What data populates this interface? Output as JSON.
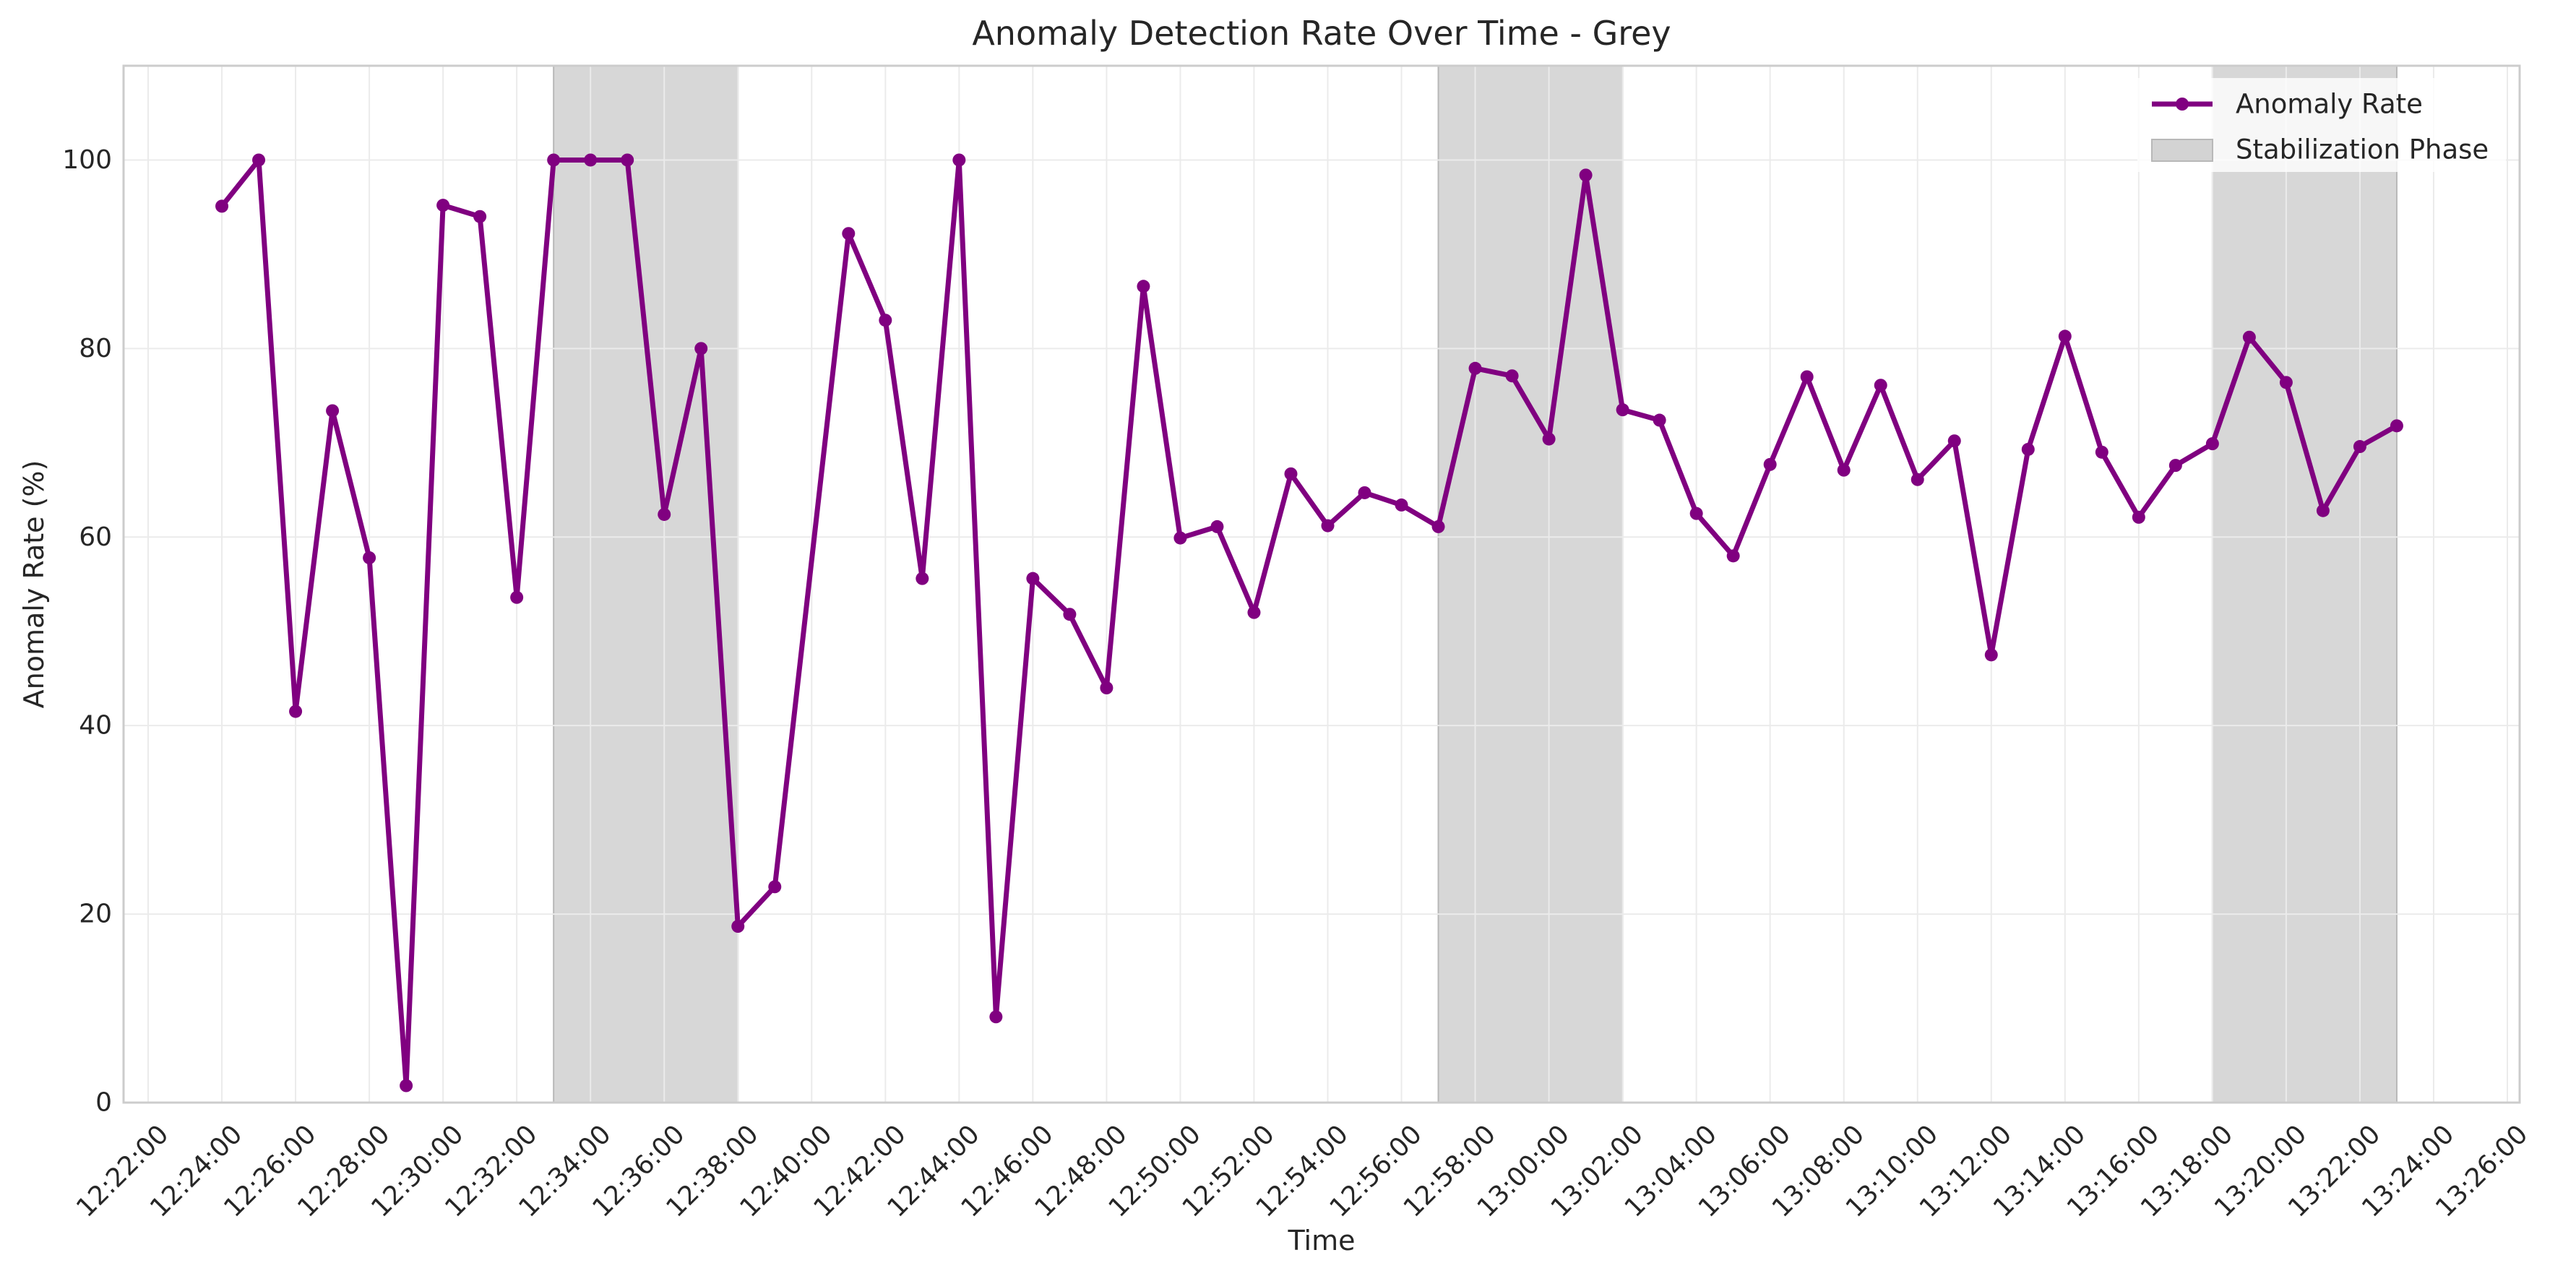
{
  "chart_data": {
    "type": "line",
    "title": "Anomaly Detection Rate Over Time - Grey",
    "xlabel": "Time",
    "ylabel": "Anomaly Rate (%)",
    "ylim": [
      0,
      110
    ],
    "y_ticks": [
      "0",
      "20",
      "40",
      "60",
      "80",
      "100"
    ],
    "x_range": [
      "12:21:20",
      "13:26:20"
    ],
    "x_ticks": [
      "12:22:00",
      "12:24:00",
      "12:26:00",
      "12:28:00",
      "12:30:00",
      "12:32:00",
      "12:34:00",
      "12:36:00",
      "12:38:00",
      "12:40:00",
      "12:42:00",
      "12:44:00",
      "12:46:00",
      "12:48:00",
      "12:50:00",
      "12:52:00",
      "12:54:00",
      "12:56:00",
      "12:58:00",
      "13:00:00",
      "13:02:00",
      "13:04:00",
      "13:06:00",
      "13:08:00",
      "13:10:00",
      "13:12:00",
      "13:14:00",
      "13:16:00",
      "13:18:00",
      "13:20:00",
      "13:22:00",
      "13:24:00",
      "13:26:00"
    ],
    "grid": true,
    "legend_position": "upper right",
    "series": [
      {
        "name": "Anomaly Rate",
        "color": "#800080",
        "marker": "circle",
        "x": [
          "12:24:00",
          "12:25:00",
          "12:26:00",
          "12:27:00",
          "12:28:00",
          "12:29:00",
          "12:30:00",
          "12:31:00",
          "12:32:00",
          "12:33:00",
          "12:34:00",
          "12:35:00",
          "12:36:00",
          "12:37:00",
          "12:38:00",
          "12:39:00",
          "12:41:00",
          "12:42:00",
          "12:43:00",
          "12:44:00",
          "12:45:00",
          "12:46:00",
          "12:47:00",
          "12:48:00",
          "12:49:00",
          "12:50:00",
          "12:51:00",
          "12:52:00",
          "12:53:00",
          "12:54:00",
          "12:55:00",
          "12:56:00",
          "12:57:00",
          "12:58:00",
          "12:59:00",
          "13:00:00",
          "13:01:00",
          "13:02:00",
          "13:03:00",
          "13:04:00",
          "13:05:00",
          "13:06:00",
          "13:07:00",
          "13:08:00",
          "13:09:00",
          "13:10:00",
          "13:11:00",
          "13:12:00",
          "13:13:00",
          "13:14:00",
          "13:15:00",
          "13:16:00",
          "13:17:00",
          "13:18:00",
          "13:19:00",
          "13:20:00",
          "13:21:00",
          "13:22:00",
          "13:23:00"
        ],
        "values": [
          95.1,
          100,
          41.5,
          73.4,
          57.8,
          1.8,
          95.2,
          94,
          53.6,
          100,
          100,
          100,
          62.4,
          80,
          18.7,
          22.9,
          92.2,
          83,
          55.6,
          100,
          9.1,
          55.6,
          51.8,
          44,
          86.6,
          59.9,
          61.1,
          52,
          66.7,
          61.2,
          64.7,
          63.4,
          61.1,
          77.9,
          77.1,
          70.4,
          98.4,
          73.5,
          72.4,
          62.5,
          58,
          67.7,
          77,
          67.1,
          76.1,
          66.1,
          70.2,
          47.5,
          69.3,
          81.3,
          69,
          62.1,
          67.6,
          69.9,
          81.2,
          76.4,
          62.8,
          69.6,
          71.8
        ]
      }
    ],
    "shaded_regions": {
      "name": "Stabilization Phase",
      "color": "#d3d3d3",
      "ranges": [
        [
          "12:33:00",
          "12:38:00"
        ],
        [
          "12:57:00",
          "13:02:00"
        ],
        [
          "13:18:00",
          "13:23:00"
        ]
      ]
    }
  }
}
